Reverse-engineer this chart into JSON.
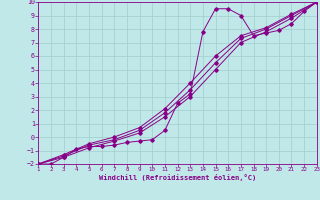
{
  "xlabel": "Windchill (Refroidissement éolien,°C)",
  "xlim": [
    1,
    23
  ],
  "ylim": [
    -2,
    10
  ],
  "xticks": [
    1,
    2,
    3,
    4,
    5,
    6,
    7,
    8,
    9,
    10,
    11,
    12,
    13,
    14,
    15,
    16,
    17,
    18,
    19,
    20,
    21,
    22,
    23
  ],
  "yticks": [
    -2,
    -1,
    0,
    1,
    2,
    3,
    4,
    5,
    6,
    7,
    8,
    9,
    10
  ],
  "bg_color": "#c0e8e8",
  "grid_color": "#a0cece",
  "line_color": "#880088",
  "lines": [
    {
      "x": [
        1,
        3,
        5,
        7,
        9,
        11,
        13,
        15,
        17,
        19,
        21,
        23
      ],
      "y": [
        -2,
        -1.5,
        -0.8,
        -0.3,
        0.3,
        1.5,
        3.0,
        5.0,
        7.0,
        7.8,
        8.8,
        10.0
      ]
    },
    {
      "x": [
        1,
        3,
        5,
        7,
        9,
        11,
        13,
        15,
        17,
        19,
        21,
        23
      ],
      "y": [
        -2,
        -1.4,
        -0.6,
        -0.2,
        0.5,
        1.8,
        3.5,
        5.5,
        7.3,
        8.0,
        9.0,
        10.0
      ]
    },
    {
      "x": [
        1,
        2,
        3,
        4,
        5,
        6,
        7,
        8,
        9,
        10,
        11,
        12,
        13,
        14,
        15,
        16,
        17,
        18,
        19,
        20,
        21,
        22,
        23
      ],
      "y": [
        -2,
        -2,
        -1.5,
        -0.9,
        -0.7,
        -0.7,
        -0.6,
        -0.4,
        -0.3,
        -0.2,
        0.5,
        2.5,
        3.2,
        7.8,
        9.5,
        9.5,
        9.0,
        7.5,
        7.7,
        7.9,
        8.4,
        9.3,
        10.0
      ]
    },
    {
      "x": [
        1,
        3,
        5,
        7,
        9,
        11,
        13,
        15,
        17,
        19,
        21,
        23
      ],
      "y": [
        -2,
        -1.3,
        -0.5,
        0.0,
        0.7,
        2.1,
        4.0,
        6.0,
        7.5,
        8.1,
        9.1,
        10.0
      ]
    }
  ]
}
